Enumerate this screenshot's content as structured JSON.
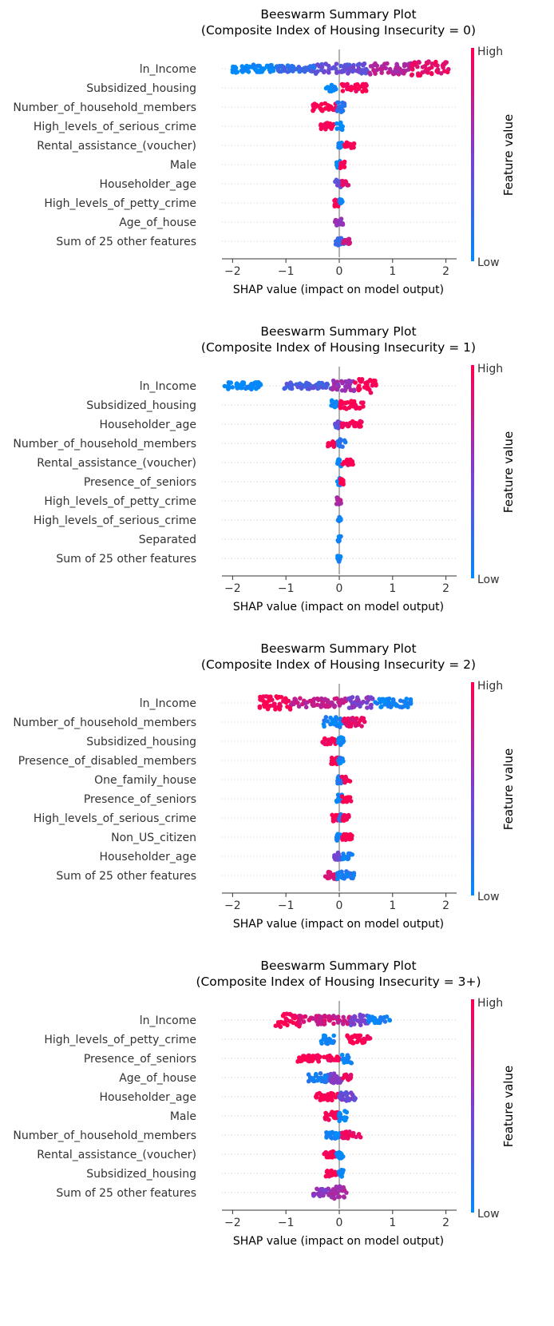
{
  "colors": {
    "high": "#ff0051",
    "mid": "#7e3dcc",
    "low": "#008bfb",
    "axis": "#333333",
    "zero_line": "#999999",
    "row_dots": "#cccccc"
  },
  "chart_data": [
    {
      "type": "scatter",
      "subtype": "beeswarm",
      "title": "Beeswarm Summary Plot",
      "subtitle": "(Composite Index of Housing Insecurity = 0)",
      "xlabel": "SHAP value (impact on model output)",
      "xlim": [
        -2.2,
        2.2
      ],
      "xticks": [
        "−2",
        "−1",
        "0",
        "1",
        "2"
      ],
      "colorbar": {
        "label": "Feature value",
        "high": "High",
        "low": "Low"
      },
      "features": [
        {
          "name": "ln_Income",
          "segments": [
            [
              -2.0,
              -1.2,
              0.0,
              0.55
            ],
            [
              -1.2,
              -0.45,
              0.2,
              0.45
            ],
            [
              -0.45,
              0.55,
              0.4,
              0.7
            ],
            [
              0.55,
              1.35,
              0.7,
              0.8
            ],
            [
              1.35,
              2.05,
              0.9,
              1.0
            ]
          ]
        },
        {
          "name": "Subsidized_housing",
          "segments": [
            [
              -0.25,
              -0.05,
              0.0,
              0.5
            ],
            [
              0.05,
              0.52,
              1.0,
              0.55
            ]
          ]
        },
        {
          "name": "Number_of_household_members",
          "segments": [
            [
              -0.5,
              -0.05,
              1.0,
              0.55
            ],
            [
              -0.05,
              0.12,
              0.15,
              0.7
            ]
          ]
        },
        {
          "name": "High_levels_of_serious_crime",
          "segments": [
            [
              -0.38,
              -0.1,
              1.0,
              0.45
            ],
            [
              -0.05,
              0.08,
              0.0,
              0.5
            ]
          ]
        },
        {
          "name": "Rental_assistance_(voucher)",
          "segments": [
            [
              -0.05,
              0.05,
              0.05,
              0.45
            ],
            [
              0.1,
              0.28,
              1.0,
              0.4
            ]
          ]
        },
        {
          "name": "Male",
          "segments": [
            [
              -0.05,
              0.02,
              0.0,
              0.5
            ],
            [
              0.02,
              0.1,
              1.0,
              0.5
            ]
          ]
        },
        {
          "name": "Householder_age",
          "segments": [
            [
              -0.08,
              0.04,
              0.4,
              0.55
            ],
            [
              0.04,
              0.18,
              0.9,
              0.4
            ]
          ]
        },
        {
          "name": "High_levels_of_petty_crime",
          "segments": [
            [
              -0.1,
              -0.01,
              1.0,
              0.5
            ],
            [
              -0.01,
              0.06,
              0.0,
              0.5
            ]
          ]
        },
        {
          "name": "Age_of_house",
          "segments": [
            [
              -0.08,
              0.07,
              0.6,
              0.5
            ]
          ]
        },
        {
          "name": "Sum of 25 other features",
          "segments": [
            [
              -0.1,
              0.1,
              0.2,
              0.6
            ],
            [
              0.06,
              0.2,
              0.8,
              0.4
            ]
          ]
        }
      ]
    },
    {
      "type": "scatter",
      "subtype": "beeswarm",
      "title": "Beeswarm Summary Plot",
      "subtitle": "(Composite Index of Housing Insecurity = 1)",
      "xlabel": "SHAP value (impact on model output)",
      "xlim": [
        -2.2,
        2.2
      ],
      "xticks": [
        "−2",
        "−1",
        "0",
        "1",
        "2"
      ],
      "colorbar": {
        "label": "Feature value",
        "high": "High",
        "low": "Low"
      },
      "features": [
        {
          "name": "ln_Income",
          "segments": [
            [
              -2.15,
              -1.45,
              0.0,
              0.5
            ],
            [
              -1.05,
              -0.15,
              0.3,
              0.45
            ],
            [
              -0.15,
              0.3,
              0.6,
              0.75
            ],
            [
              0.3,
              0.7,
              1.0,
              1.0
            ]
          ]
        },
        {
          "name": "Subsidized_housing",
          "segments": [
            [
              -0.15,
              -0.02,
              0.0,
              0.7
            ],
            [
              0.0,
              0.45,
              1.0,
              0.55
            ]
          ]
        },
        {
          "name": "Householder_age",
          "segments": [
            [
              -0.08,
              0.02,
              0.35,
              0.6
            ],
            [
              0.02,
              0.42,
              1.0,
              0.4
            ]
          ]
        },
        {
          "name": "Number_of_household_members",
          "segments": [
            [
              -0.22,
              -0.03,
              1.0,
              0.5
            ],
            [
              -0.03,
              0.12,
              0.15,
              0.6
            ]
          ]
        },
        {
          "name": "Rental_assistance_(voucher)",
          "segments": [
            [
              -0.04,
              0.04,
              0.0,
              0.5
            ],
            [
              0.05,
              0.28,
              1.0,
              0.4
            ]
          ]
        },
        {
          "name": "Presence_of_seniors",
          "segments": [
            [
              -0.04,
              0.02,
              0.0,
              0.5
            ],
            [
              0.02,
              0.08,
              1.0,
              0.4
            ]
          ]
        },
        {
          "name": "High_levels_of_petty_crime",
          "segments": [
            [
              -0.05,
              0.04,
              0.7,
              0.5
            ]
          ]
        },
        {
          "name": "High_levels_of_serious_crime",
          "segments": [
            [
              -0.03,
              0.03,
              0.1,
              0.4
            ]
          ]
        },
        {
          "name": "Separated",
          "segments": [
            [
              -0.03,
              0.03,
              0.05,
              0.4
            ]
          ]
        },
        {
          "name": "Sum of 25 other features",
          "segments": [
            [
              -0.04,
              0.04,
              0.05,
              0.45
            ]
          ]
        }
      ]
    },
    {
      "type": "scatter",
      "subtype": "beeswarm",
      "title": "Beeswarm Summary Plot",
      "subtitle": "(Composite Index of Housing Insecurity = 2)",
      "xlabel": "SHAP value (impact on model output)",
      "xlim": [
        -2.2,
        2.2
      ],
      "xticks": [
        "−2",
        "−1",
        "0",
        "1",
        "2"
      ],
      "colorbar": {
        "label": "Feature value",
        "high": "High",
        "low": "Low"
      },
      "features": [
        {
          "name": "ln_Income",
          "segments": [
            [
              -1.5,
              -0.9,
              1.0,
              0.95
            ],
            [
              -0.9,
              0.15,
              0.75,
              0.65
            ],
            [
              0.15,
              0.65,
              0.5,
              0.8
            ],
            [
              0.65,
              1.35,
              0.05,
              0.6
            ]
          ]
        },
        {
          "name": "Number_of_household_members",
          "segments": [
            [
              -0.3,
              0.05,
              0.05,
              0.7
            ],
            [
              0.05,
              0.5,
              0.9,
              0.6
            ]
          ]
        },
        {
          "name": "Subsidized_housing",
          "segments": [
            [
              -0.32,
              -0.05,
              1.0,
              0.45
            ],
            [
              -0.05,
              0.12,
              0.0,
              0.55
            ]
          ]
        },
        {
          "name": "Presence_of_disabled_members",
          "segments": [
            [
              -0.15,
              -0.02,
              1.0,
              0.5
            ],
            [
              -0.02,
              0.08,
              0.05,
              0.5
            ]
          ]
        },
        {
          "name": "One_family_house",
          "segments": [
            [
              -0.05,
              0.05,
              0.1,
              0.55
            ],
            [
              0.05,
              0.22,
              1.0,
              0.4
            ]
          ]
        },
        {
          "name": "Presence_of_seniors",
          "segments": [
            [
              -0.05,
              0.05,
              0.05,
              0.55
            ],
            [
              0.05,
              0.22,
              1.0,
              0.4
            ]
          ]
        },
        {
          "name": "High_levels_of_serious_crime",
          "segments": [
            [
              -0.15,
              0.0,
              1.0,
              0.45
            ],
            [
              0.0,
              0.06,
              0.1,
              0.5
            ],
            [
              0.06,
              0.18,
              1.0,
              0.4
            ]
          ]
        },
        {
          "name": "Non_US_citizen",
          "segments": [
            [
              -0.05,
              0.05,
              0.05,
              0.5
            ],
            [
              0.05,
              0.25,
              1.0,
              0.4
            ]
          ]
        },
        {
          "name": "Householder_age",
          "segments": [
            [
              -0.1,
              0.05,
              0.4,
              0.55
            ],
            [
              0.05,
              0.25,
              0.05,
              0.4
            ]
          ]
        },
        {
          "name": "Sum of 25 other features",
          "segments": [
            [
              -0.28,
              -0.05,
              0.85,
              0.5
            ],
            [
              -0.05,
              0.28,
              0.1,
              0.6
            ]
          ]
        }
      ]
    },
    {
      "type": "scatter",
      "subtype": "beeswarm",
      "title": "Beeswarm Summary Plot",
      "subtitle": "(Composite Index of Housing Insecurity = 3+)",
      "xlabel": "SHAP value (impact on model output)",
      "xlim": [
        -2.2,
        2.2
      ],
      "xticks": [
        "−2",
        "−1",
        "0",
        "1",
        "2"
      ],
      "colorbar": {
        "label": "Feature value",
        "high": "High",
        "low": "Low"
      },
      "features": [
        {
          "name": "ln_Income",
          "segments": [
            [
              -1.2,
              -0.75,
              1.0,
              0.95
            ],
            [
              -0.75,
              0.2,
              0.8,
              0.6
            ],
            [
              0.2,
              0.55,
              0.45,
              0.75
            ],
            [
              0.55,
              0.95,
              0.05,
              0.55
            ]
          ]
        },
        {
          "name": "High_levels_of_petty_crime",
          "segments": [
            [
              -0.35,
              -0.1,
              0.05,
              0.65
            ],
            [
              0.15,
              0.6,
              1.0,
              0.55
            ]
          ]
        },
        {
          "name": "Presence_of_seniors",
          "segments": [
            [
              -0.8,
              0.0,
              1.0,
              0.45
            ],
            [
              0.05,
              0.25,
              0.0,
              0.65
            ]
          ]
        },
        {
          "name": "Age_of_house",
          "segments": [
            [
              -0.6,
              -0.2,
              0.1,
              0.65
            ],
            [
              -0.2,
              0.05,
              0.5,
              0.75
            ],
            [
              0.05,
              0.22,
              0.95,
              0.45
            ]
          ]
        },
        {
          "name": "Householder_age",
          "segments": [
            [
              -0.45,
              0.0,
              1.0,
              0.5
            ],
            [
              0.0,
              0.32,
              0.4,
              0.6
            ]
          ]
        },
        {
          "name": "Male",
          "segments": [
            [
              -0.28,
              -0.02,
              1.0,
              0.65
            ],
            [
              -0.02,
              0.15,
              0.0,
              0.7
            ]
          ]
        },
        {
          "name": "Number_of_household_members",
          "segments": [
            [
              -0.25,
              0.05,
              0.05,
              0.5
            ],
            [
              0.05,
              0.4,
              0.9,
              0.55
            ]
          ]
        },
        {
          "name": "Rental_assistance_(voucher)",
          "segments": [
            [
              -0.32,
              -0.05,
              1.0,
              0.45
            ],
            [
              -0.05,
              0.08,
              0.0,
              0.55
            ]
          ]
        },
        {
          "name": "Subsidized_housing",
          "segments": [
            [
              -0.25,
              -0.02,
              1.0,
              0.4
            ],
            [
              -0.02,
              0.08,
              0.0,
              0.5
            ]
          ]
        },
        {
          "name": "Sum of 25 other features",
          "segments": [
            [
              -0.5,
              -0.15,
              0.55,
              0.55
            ],
            [
              -0.15,
              0.15,
              0.65,
              0.9
            ]
          ]
        }
      ]
    }
  ]
}
